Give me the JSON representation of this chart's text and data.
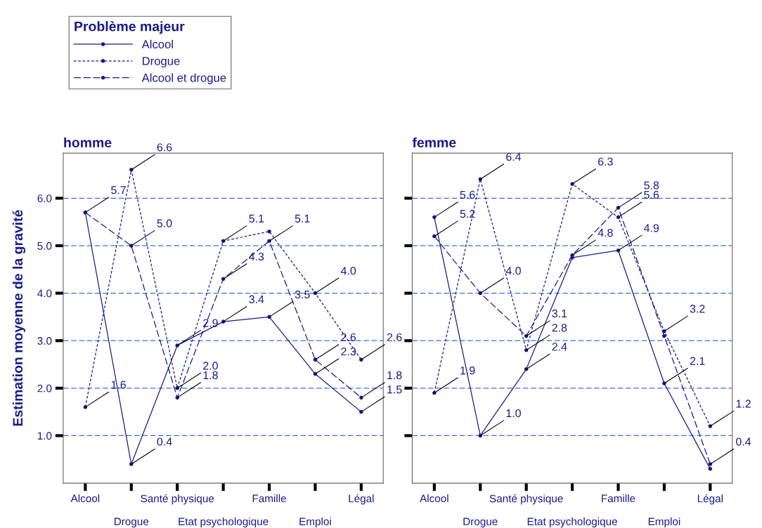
{
  "chart_data": [
    {
      "type": "line",
      "title": "homme",
      "ylabel": "Estimation moyenne de la gravité",
      "legend_title": "Problème majeur",
      "legend": "top left",
      "grid": "y",
      "marker": "circle",
      "categories": [
        "Alcool",
        "Drogue",
        "Santé physique",
        "Etat psychologique",
        "Famille",
        "Emploi",
        "Légal"
      ],
      "ylim": [
        0,
        6.95
      ],
      "yticks": [
        {
          "value": 1,
          "label": "1.0"
        },
        {
          "value": 2,
          "label": "2.0"
        },
        {
          "value": 3,
          "label": "3.0"
        },
        {
          "value": 4,
          "label": "4.0"
        },
        {
          "value": 5,
          "label": "5.0"
        },
        {
          "value": 6,
          "label": "6.0"
        }
      ],
      "series": [
        {
          "name": "Alcool",
          "color": "#1a1a8c",
          "line_style": "solid",
          "values": [
            5.7,
            0.4,
            2.9,
            3.4,
            3.5,
            2.3,
            1.5
          ],
          "value_labels": [
            "5.7",
            "0.4",
            "2.9",
            "3.4",
            "3.5",
            "2.3",
            "1.5"
          ]
        },
        {
          "name": "Drogue",
          "color": "#1a1a8c",
          "line_style": "dotted",
          "values": [
            1.6,
            6.6,
            2.0,
            5.1,
            5.3,
            4.0,
            2.6
          ],
          "value_labels": [
            "1.6",
            "6.6",
            "2.0",
            "5.1",
            null,
            "4.0",
            "2.6"
          ]
        },
        {
          "name": "Alcool et drogue",
          "color": "#1a1a8c",
          "line_style": "dashed",
          "values": [
            5.7,
            5.0,
            1.8,
            4.3,
            5.1,
            2.6,
            1.8
          ],
          "value_labels": [
            null,
            "5.0",
            "1.8",
            "4.3",
            "5.1",
            "2.6",
            "1.8"
          ]
        }
      ]
    },
    {
      "type": "line",
      "title": "femme",
      "grid": "y",
      "marker": "circle",
      "tick_labels": "x",
      "categories": [
        "Alcool",
        "Drogue",
        "Santé physique",
        "Etat psychologique",
        "Famille",
        "Emploi",
        "Légal"
      ],
      "ylim": [
        0,
        6.95
      ],
      "yticks": [
        {
          "value": 1,
          "label": null
        },
        {
          "value": 2,
          "label": null
        },
        {
          "value": 3,
          "label": null
        },
        {
          "value": 4,
          "label": null
        },
        {
          "value": 5,
          "label": null
        },
        {
          "value": 6,
          "label": null
        }
      ],
      "series": [
        {
          "color": "#1a1a8c",
          "line_style": "solid",
          "values": [
            5.6,
            1.0,
            2.4,
            4.75,
            4.9,
            2.1,
            0.3
          ],
          "value_labels": [
            "5.6",
            "1.0",
            "2.4",
            null,
            "4.9",
            "2.1",
            null
          ]
        },
        {
          "color": "#1a1a8c",
          "line_style": "dotted",
          "values": [
            1.9,
            6.4,
            2.8,
            6.3,
            5.6,
            3.2,
            1.2
          ],
          "value_labels": [
            "1.9",
            "6.4",
            "2.8",
            "6.3",
            "5.6",
            "3.2",
            "1.2"
          ]
        },
        {
          "color": "#1a1a8c",
          "line_style": "dashed",
          "values": [
            5.2,
            4.0,
            3.1,
            4.8,
            5.8,
            3.1,
            0.4
          ],
          "value_labels": [
            "5.2",
            "4.0",
            "3.1",
            "4.8",
            "5.8",
            null,
            "0.4"
          ]
        }
      ]
    }
  ]
}
